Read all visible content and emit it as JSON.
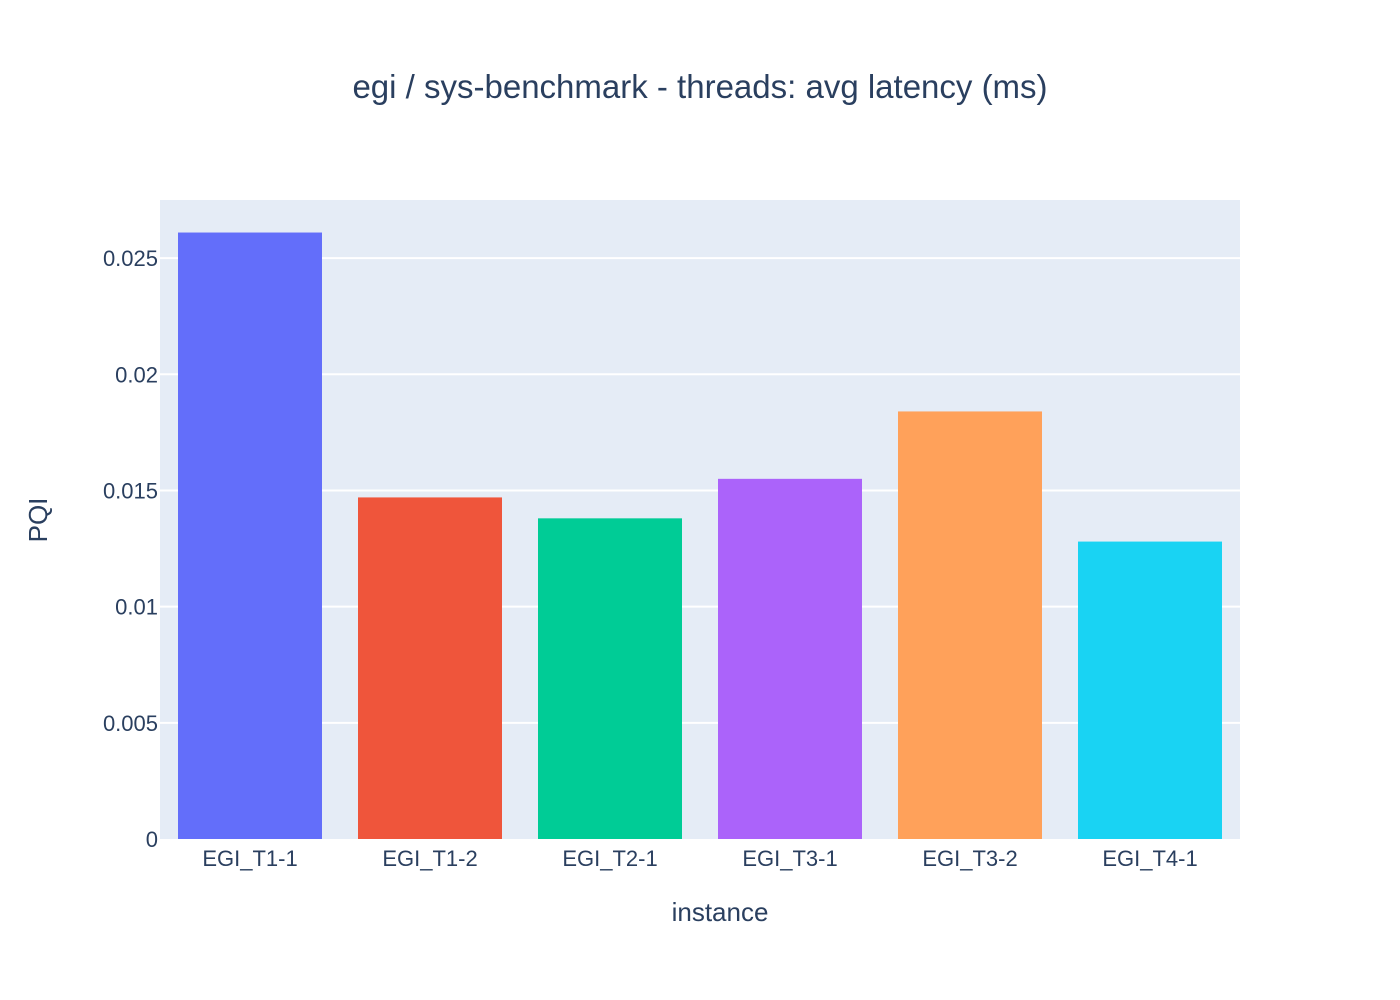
{
  "chart_data": {
    "type": "bar",
    "title": "egi / sys-benchmark - threads: avg latency (ms)",
    "xlabel": "instance",
    "ylabel": "PQI",
    "categories": [
      "EGI_T1-1",
      "EGI_T1-2",
      "EGI_T2-1",
      "EGI_T3-1",
      "EGI_T3-2",
      "EGI_T4-1"
    ],
    "values": [
      0.0261,
      0.0147,
      0.0138,
      0.0155,
      0.0184,
      0.0128
    ],
    "colors": [
      "#636efa",
      "#ef553b",
      "#00cc96",
      "#ab63fa",
      "#ffa15a",
      "#19d3f3"
    ],
    "ylim": [
      0,
      0.0275
    ],
    "yticks": [
      0,
      0.005,
      0.01,
      0.015,
      0.02,
      0.025
    ],
    "ytick_labels": [
      "0",
      "0.005",
      "0.01",
      "0.015",
      "0.02",
      "0.025"
    ],
    "grid": true,
    "plot_background": "#e5ecf6",
    "legend": "none"
  }
}
